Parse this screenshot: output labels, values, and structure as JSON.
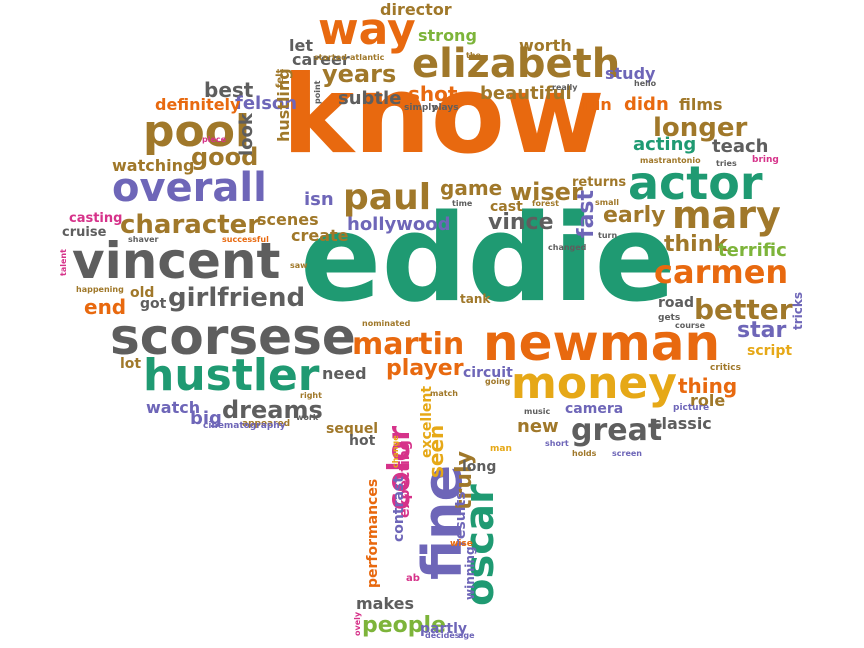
{
  "palette": {
    "orange": "#E8690F",
    "green": "#1F9A72",
    "gray": "#5E5E5E",
    "olive": "#A0782A",
    "purple": "#6E66B8",
    "gold": "#E6A817",
    "magenta": "#D6338A",
    "lime": "#7DB43A"
  },
  "words": [
    {
      "text": "know"
    },
    {
      "text": "eddie"
    },
    {
      "text": "newman"
    },
    {
      "text": "scorsese"
    },
    {
      "text": "vincent"
    },
    {
      "text": "actor"
    },
    {
      "text": "money"
    },
    {
      "text": "hustler"
    },
    {
      "text": "elizabeth"
    },
    {
      "text": "way"
    },
    {
      "text": "overall"
    },
    {
      "text": "pool"
    },
    {
      "text": "paul"
    },
    {
      "text": "mary"
    },
    {
      "text": "carmen"
    },
    {
      "text": "martin"
    },
    {
      "text": "character"
    },
    {
      "text": "girlfriend"
    },
    {
      "text": "fine"
    },
    {
      "text": "oscar"
    },
    {
      "text": "color"
    },
    {
      "text": "great"
    },
    {
      "text": "years"
    },
    {
      "text": "better"
    },
    {
      "text": "longer"
    },
    {
      "text": "dreams"
    },
    {
      "text": "player"
    },
    {
      "text": "best"
    },
    {
      "text": "good"
    },
    {
      "text": "shot"
    },
    {
      "text": "game"
    },
    {
      "text": "wiser"
    },
    {
      "text": "vince"
    },
    {
      "text": "think"
    },
    {
      "text": "terrific"
    },
    {
      "text": "early"
    },
    {
      "text": "fast"
    },
    {
      "text": "acting"
    },
    {
      "text": "teach"
    },
    {
      "text": "star"
    },
    {
      "text": "thing"
    },
    {
      "text": "new"
    },
    {
      "text": "end"
    },
    {
      "text": "people"
    },
    {
      "text": "truly"
    },
    {
      "text": "seen"
    },
    {
      "text": "subtle"
    },
    {
      "text": "look"
    },
    {
      "text": "felson"
    },
    {
      "text": "isn"
    },
    {
      "text": "hollywood"
    },
    {
      "text": "scenes"
    },
    {
      "text": "create"
    },
    {
      "text": "watching"
    },
    {
      "text": "definitely"
    },
    {
      "text": "hustling"
    },
    {
      "text": "beautiful"
    },
    {
      "text": "fun"
    },
    {
      "text": "didn"
    },
    {
      "text": "films"
    },
    {
      "text": "study"
    },
    {
      "text": "career"
    },
    {
      "text": "strong"
    },
    {
      "text": "director"
    },
    {
      "text": "worth"
    },
    {
      "text": "let"
    },
    {
      "text": "need"
    },
    {
      "text": "circuit"
    },
    {
      "text": "role"
    },
    {
      "text": "classic"
    },
    {
      "text": "camera"
    },
    {
      "text": "watch"
    },
    {
      "text": "big"
    },
    {
      "text": "sequel"
    },
    {
      "text": "hot"
    },
    {
      "text": "makes"
    },
    {
      "text": "partly"
    },
    {
      "text": "expecting"
    },
    {
      "text": "contrast"
    },
    {
      "text": "performances"
    },
    {
      "text": "results"
    },
    {
      "text": "excellent"
    },
    {
      "text": "long"
    },
    {
      "text": "winning"
    },
    {
      "text": "returns"
    },
    {
      "text": "casting"
    },
    {
      "text": "cruise"
    },
    {
      "text": "old"
    },
    {
      "text": "got"
    },
    {
      "text": "road"
    },
    {
      "text": "script"
    },
    {
      "text": "tricks"
    },
    {
      "text": "lot"
    },
    {
      "text": "cast"
    },
    {
      "text": "tank"
    },
    {
      "text": "mastrantonio"
    },
    {
      "text": "tries"
    },
    {
      "text": "bring"
    },
    {
      "text": "nominated"
    },
    {
      "text": "gets"
    },
    {
      "text": "course"
    },
    {
      "text": "critics"
    },
    {
      "text": "going"
    },
    {
      "text": "music"
    },
    {
      "text": "picture"
    },
    {
      "text": "short"
    },
    {
      "text": "holds"
    },
    {
      "text": "screen"
    },
    {
      "text": "match"
    },
    {
      "text": "right"
    },
    {
      "text": "appeared"
    },
    {
      "text": "work"
    },
    {
      "text": "man"
    },
    {
      "text": "wise"
    },
    {
      "text": "decides"
    },
    {
      "text": "age"
    },
    {
      "text": "cinematography"
    },
    {
      "text": "happening"
    },
    {
      "text": "talent"
    },
    {
      "text": "saw"
    },
    {
      "text": "successful"
    },
    {
      "text": "shaver"
    },
    {
      "text": "changed"
    },
    {
      "text": "forest"
    },
    {
      "text": "small"
    },
    {
      "text": "turn"
    },
    {
      "text": "time"
    },
    {
      "text": "really"
    },
    {
      "text": "hello"
    },
    {
      "text": "piece"
    },
    {
      "text": "point"
    },
    {
      "text": "simply"
    },
    {
      "text": "plays"
    },
    {
      "text": "started"
    },
    {
      "text": "atlantic"
    },
    {
      "text": "the"
    },
    {
      "text": "felt"
    },
    {
      "text": "ovely"
    },
    {
      "text": "change"
    },
    {
      "text": "ab"
    }
  ]
}
